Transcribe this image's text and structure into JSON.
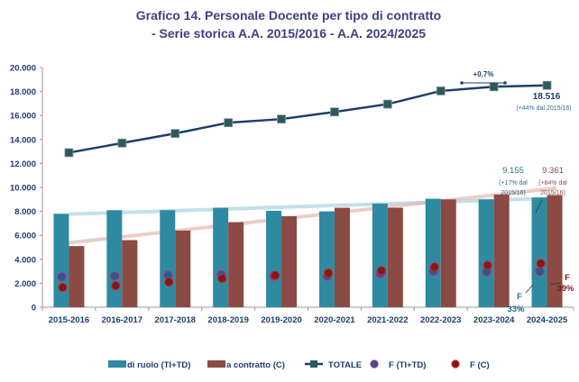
{
  "chart_data": {
    "type": "bar",
    "title": "Grafico 14. Personale Docente per tipo di contratto",
    "subtitle": "- Serie storica A.A. 2015/2016 - A.A. 2024/2025",
    "categories": [
      "2015-2016",
      "2016-2017",
      "2017-2018",
      "2018-2019",
      "2019-2020",
      "2020-2021",
      "2021-2022",
      "2022-2023",
      "2023-2024",
      "2024-2025"
    ],
    "ylim": [
      0,
      20000
    ],
    "yticks": [
      "0",
      "2.000",
      "4.000",
      "6.000",
      "8.000",
      "10.000",
      "12.000",
      "14.000",
      "16.000",
      "18.000",
      "20.000"
    ],
    "legend_position": "bottom",
    "grid": false,
    "series": [
      {
        "name": "di ruolo (TI+TD)",
        "kind": "bar",
        "color": "#2e8aa0",
        "values": [
          7800,
          8100,
          8100,
          8300,
          8050,
          8000,
          8650,
          9050,
          9000,
          9155
        ]
      },
      {
        "name": "a contratto (C)",
        "kind": "bar",
        "color": "#8b4a44",
        "values": [
          5100,
          5600,
          6400,
          7100,
          7600,
          8300,
          8300,
          9000,
          9400,
          9361
        ]
      },
      {
        "name": "TOTALE",
        "kind": "line",
        "color": "#1f3d6b",
        "marker_color": "#2a5a5e",
        "values": [
          12900,
          13700,
          14500,
          15400,
          15700,
          16300,
          16950,
          18050,
          18400,
          18516
        ]
      },
      {
        "name": "F (TI+TD)",
        "kind": "scatter",
        "color": "#1e5f8a",
        "edge": "#c0208a",
        "values": [
          2550,
          2600,
          2650,
          2700,
          2600,
          2600,
          2800,
          3000,
          2950,
          3000
        ]
      },
      {
        "name": "F (C)",
        "kind": "scatter",
        "color": "#7a1a1a",
        "edge": "#d02020",
        "values": [
          1650,
          1800,
          2100,
          2400,
          2650,
          2850,
          3050,
          3350,
          3500,
          3650
        ]
      }
    ],
    "annotations": {
      "growth_last_year": "+0,7%",
      "total_value": "18.516",
      "total_note": "(+44% dal 2015/16)",
      "ruolo_value": "9.155",
      "ruolo_note_1": "(+17% dal",
      "ruolo_note_2": "2015/16)",
      "contratto_value": "9.361",
      "contratto_note_1": "(+84% dal",
      "contratto_note_2": "2015/16)",
      "f_c_label": "F",
      "f_c_pct": "39%",
      "f_ti_label": "F",
      "f_ti_pct": "33%"
    }
  }
}
